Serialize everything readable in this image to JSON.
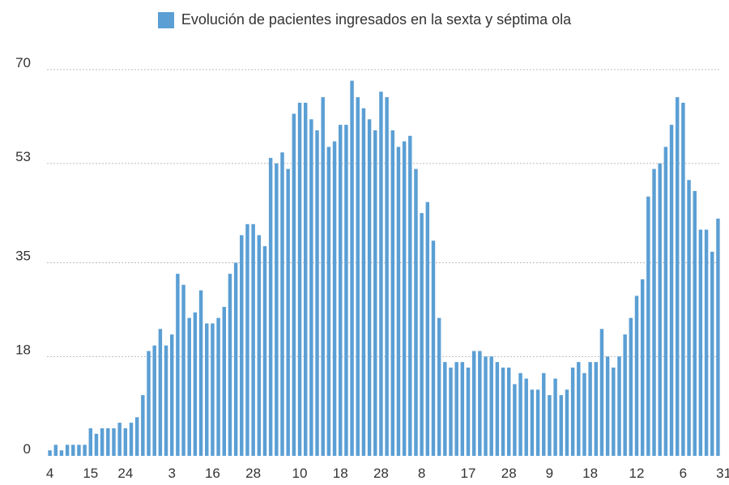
{
  "chart_data": {
    "type": "bar",
    "series": [
      {
        "name": "Evolución de pacientes ingresados en la sexta y séptima ola",
        "values": [
          1,
          2,
          1,
          2,
          2,
          2,
          2,
          5,
          4,
          5,
          5,
          5,
          6,
          5,
          6,
          7,
          11,
          19,
          20,
          23,
          20,
          22,
          33,
          31,
          25,
          26,
          30,
          24,
          24,
          25,
          27,
          33,
          35,
          40,
          42,
          42,
          40,
          38,
          54,
          53,
          55,
          52,
          62,
          64,
          64,
          61,
          59,
          65,
          56,
          57,
          60,
          60,
          68,
          65,
          63,
          61,
          59,
          66,
          65,
          59,
          56,
          57,
          58,
          52,
          44,
          46,
          39,
          25,
          17,
          16,
          17,
          17,
          16,
          19,
          19,
          18,
          18,
          17,
          16,
          16,
          13,
          15,
          14,
          12,
          12,
          15,
          11,
          14,
          11,
          12,
          16,
          17,
          15,
          17,
          17,
          23,
          18,
          16,
          18,
          22,
          25,
          29,
          32,
          47,
          52,
          53,
          56,
          60,
          65,
          64,
          50,
          48,
          41,
          41,
          37,
          43
        ]
      }
    ],
    "x_tick_labels": [
      "4",
      "15",
      "24",
      "3",
      "16",
      "28",
      "10",
      "18",
      "28",
      "8",
      "17",
      "28",
      "9",
      "18",
      "12",
      "6",
      "31"
    ],
    "x_tick_indices": [
      0,
      7,
      13,
      21,
      28,
      35,
      43,
      50,
      57,
      64,
      72,
      79,
      86,
      93,
      101,
      109,
      116
    ],
    "y_ticks": [
      0,
      18,
      35,
      53,
      70
    ],
    "ylim": [
      0,
      70
    ],
    "grid": "horizontal dotted",
    "legend_position": "top",
    "bar_color": "#5b9fd4",
    "grid_color": "#bbbbbb"
  }
}
